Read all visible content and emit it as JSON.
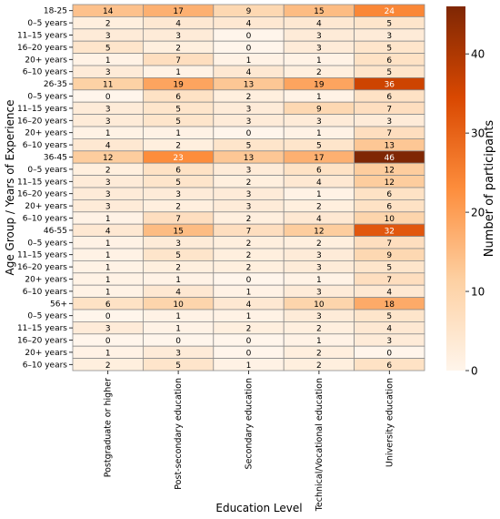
{
  "chart_data": {
    "type": "heatmap",
    "xlabel": "Education Level",
    "ylabel": "Age Group / Years of Experience",
    "colorbar_label": "Number of participants",
    "colorbar_ticks": [
      0,
      10,
      20,
      30,
      40
    ],
    "value_range": [
      0,
      46
    ],
    "colormap": [
      "#fff5eb",
      "#fdd0a2",
      "#fd8d3c",
      "#d94801",
      "#7f2704"
    ],
    "columns": [
      "Postgraduate or higher",
      "Post-secondary education",
      "Secondary education",
      "Technical/Vocational education",
      "University education"
    ],
    "rows": [
      "18-25",
      "0–5 years",
      "11–15 years",
      "16–20 years",
      "20+ years",
      "6–10 years",
      "26-35",
      "0–5 years",
      "11–15 years",
      "16–20 years",
      "20+ years",
      "6–10 years",
      "36-45",
      "0–5 years",
      "11–15 years",
      "16–20 years",
      "20+ years",
      "6–10 years",
      "46-55",
      "0–5 years",
      "11–15 years",
      "16–20 years",
      "20+ years",
      "6–10 years",
      "56+",
      "0–5 years",
      "11–15 years",
      "16–20 years",
      "20+ years",
      "6–10 years"
    ],
    "values": [
      [
        14,
        17,
        9,
        15,
        24
      ],
      [
        2,
        4,
        4,
        4,
        5
      ],
      [
        3,
        3,
        0,
        3,
        3
      ],
      [
        5,
        2,
        0,
        3,
        5
      ],
      [
        1,
        7,
        1,
        1,
        6
      ],
      [
        3,
        1,
        4,
        2,
        5
      ],
      [
        11,
        19,
        13,
        19,
        36
      ],
      [
        0,
        6,
        2,
        1,
        6
      ],
      [
        3,
        5,
        3,
        9,
        7
      ],
      [
        3,
        5,
        3,
        3,
        3
      ],
      [
        1,
        1,
        0,
        1,
        7
      ],
      [
        4,
        2,
        5,
        5,
        13
      ],
      [
        12,
        23,
        13,
        17,
        46
      ],
      [
        2,
        6,
        3,
        6,
        12
      ],
      [
        3,
        5,
        2,
        4,
        12
      ],
      [
        3,
        3,
        3,
        1,
        6
      ],
      [
        3,
        2,
        3,
        2,
        6
      ],
      [
        1,
        7,
        2,
        4,
        10
      ],
      [
        4,
        15,
        7,
        12,
        32
      ],
      [
        1,
        3,
        2,
        2,
        7
      ],
      [
        1,
        5,
        2,
        3,
        9
      ],
      [
        1,
        2,
        2,
        3,
        5
      ],
      [
        1,
        1,
        0,
        1,
        7
      ],
      [
        1,
        4,
        1,
        3,
        4
      ],
      [
        6,
        10,
        4,
        10,
        18
      ],
      [
        0,
        1,
        1,
        3,
        5
      ],
      [
        3,
        1,
        2,
        2,
        4
      ],
      [
        0,
        0,
        0,
        1,
        3
      ],
      [
        1,
        3,
        0,
        2,
        0
      ],
      [
        2,
        5,
        1,
        2,
        6
      ]
    ]
  }
}
